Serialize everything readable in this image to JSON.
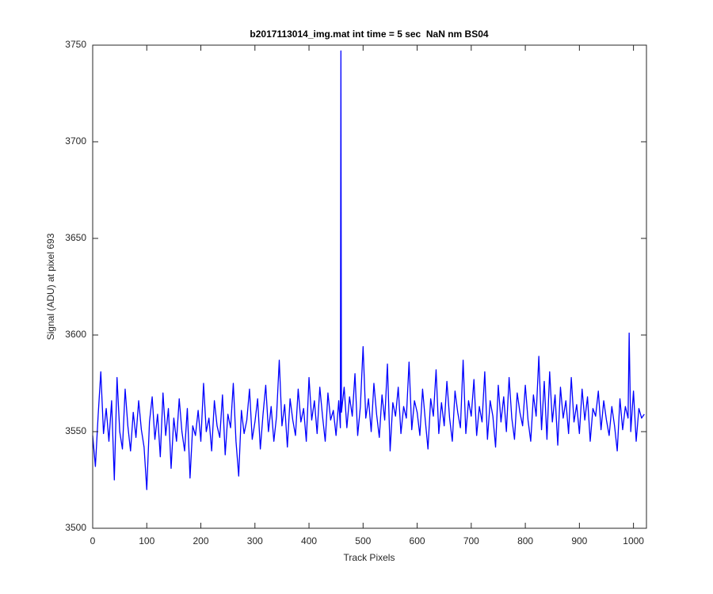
{
  "chart_data": {
    "type": "line",
    "title": "b2017113014_img.mat int time = 5 sec  NaN nm BS04",
    "x_label": "Track Pixels",
    "y_label": "Signal (ADU) at pixel 693",
    "xlim": [
      0,
      1024
    ],
    "ylim": [
      3500,
      3750
    ],
    "xticks": [
      0,
      100,
      200,
      300,
      400,
      500,
      600,
      700,
      800,
      900,
      1000
    ],
    "yticks": [
      3500,
      3550,
      3600,
      3650,
      3700,
      3750
    ],
    "x": [
      0,
      5,
      10,
      15,
      20,
      25,
      30,
      35,
      40,
      45,
      50,
      55,
      60,
      65,
      70,
      75,
      80,
      85,
      90,
      95,
      100,
      105,
      110,
      115,
      120,
      125,
      130,
      135,
      140,
      145,
      150,
      155,
      160,
      165,
      170,
      175,
      180,
      185,
      190,
      195,
      200,
      205,
      210,
      215,
      220,
      225,
      230,
      235,
      240,
      245,
      250,
      255,
      260,
      265,
      270,
      275,
      280,
      285,
      290,
      295,
      300,
      305,
      310,
      315,
      320,
      325,
      330,
      335,
      340,
      345,
      350,
      355,
      360,
      365,
      370,
      375,
      380,
      385,
      390,
      395,
      400,
      405,
      410,
      415,
      420,
      425,
      430,
      435,
      440,
      445,
      450,
      455,
      458,
      459,
      460,
      465,
      470,
      475,
      480,
      485,
      490,
      495,
      500,
      505,
      510,
      515,
      520,
      525,
      530,
      535,
      540,
      545,
      550,
      555,
      560,
      565,
      570,
      575,
      580,
      585,
      590,
      595,
      600,
      605,
      610,
      615,
      620,
      625,
      630,
      635,
      640,
      645,
      650,
      655,
      660,
      665,
      670,
      675,
      680,
      685,
      690,
      695,
      700,
      705,
      710,
      715,
      720,
      725,
      730,
      735,
      740,
      745,
      750,
      755,
      760,
      765,
      770,
      775,
      780,
      785,
      790,
      795,
      800,
      805,
      810,
      815,
      820,
      825,
      830,
      835,
      840,
      845,
      850,
      855,
      860,
      865,
      870,
      875,
      880,
      885,
      890,
      895,
      900,
      905,
      910,
      915,
      920,
      925,
      930,
      935,
      940,
      945,
      950,
      955,
      960,
      965,
      970,
      975,
      980,
      985,
      990,
      992,
      995,
      1000,
      1005,
      1010,
      1015,
      1020
    ],
    "series": [
      {
        "name": "pixel 693",
        "color": "#0000ff",
        "values": [
          3548,
          3532,
          3558,
          3581,
          3549,
          3562,
          3545,
          3566,
          3525,
          3578,
          3550,
          3541,
          3572,
          3553,
          3540,
          3560,
          3547,
          3566,
          3551,
          3542,
          3520,
          3555,
          3568,
          3546,
          3559,
          3537,
          3570,
          3548,
          3562,
          3531,
          3557,
          3545,
          3567,
          3550,
          3540,
          3562,
          3526,
          3553,
          3548,
          3561,
          3545,
          3575,
          3550,
          3557,
          3540,
          3566,
          3553,
          3547,
          3569,
          3538,
          3559,
          3552,
          3575,
          3545,
          3527,
          3561,
          3549,
          3556,
          3572,
          3546,
          3555,
          3567,
          3541,
          3559,
          3574,
          3550,
          3563,
          3545,
          3558,
          3587,
          3553,
          3564,
          3542,
          3567,
          3556,
          3548,
          3572,
          3555,
          3562,
          3545,
          3578,
          3556,
          3566,
          3549,
          3573,
          3558,
          3545,
          3570,
          3556,
          3561,
          3548,
          3566,
          3552,
          3747,
          3560,
          3573,
          3552,
          3568,
          3558,
          3580,
          3548,
          3563,
          3594,
          3557,
          3567,
          3550,
          3575,
          3559,
          3547,
          3569,
          3556,
          3585,
          3540,
          3565,
          3558,
          3573,
          3549,
          3563,
          3557,
          3586,
          3551,
          3566,
          3560,
          3548,
          3572,
          3556,
          3541,
          3567,
          3558,
          3582,
          3549,
          3565,
          3553,
          3576,
          3557,
          3545,
          3571,
          3560,
          3552,
          3587,
          3549,
          3566,
          3558,
          3577,
          3548,
          3563,
          3555,
          3581,
          3546,
          3566,
          3558,
          3542,
          3574,
          3555,
          3568,
          3550,
          3578,
          3557,
          3546,
          3570,
          3560,
          3553,
          3574,
          3556,
          3545,
          3569,
          3558,
          3589,
          3551,
          3576,
          3546,
          3581,
          3555,
          3569,
          3543,
          3573,
          3557,
          3566,
          3549,
          3578,
          3555,
          3564,
          3549,
          3572,
          3556,
          3568,
          3545,
          3562,
          3558,
          3571,
          3551,
          3566,
          3556,
          3548,
          3563,
          3553,
          3540,
          3567,
          3551,
          3563,
          3557,
          3601,
          3550,
          3571,
          3545,
          3562,
          3557,
          3559
        ]
      }
    ]
  }
}
